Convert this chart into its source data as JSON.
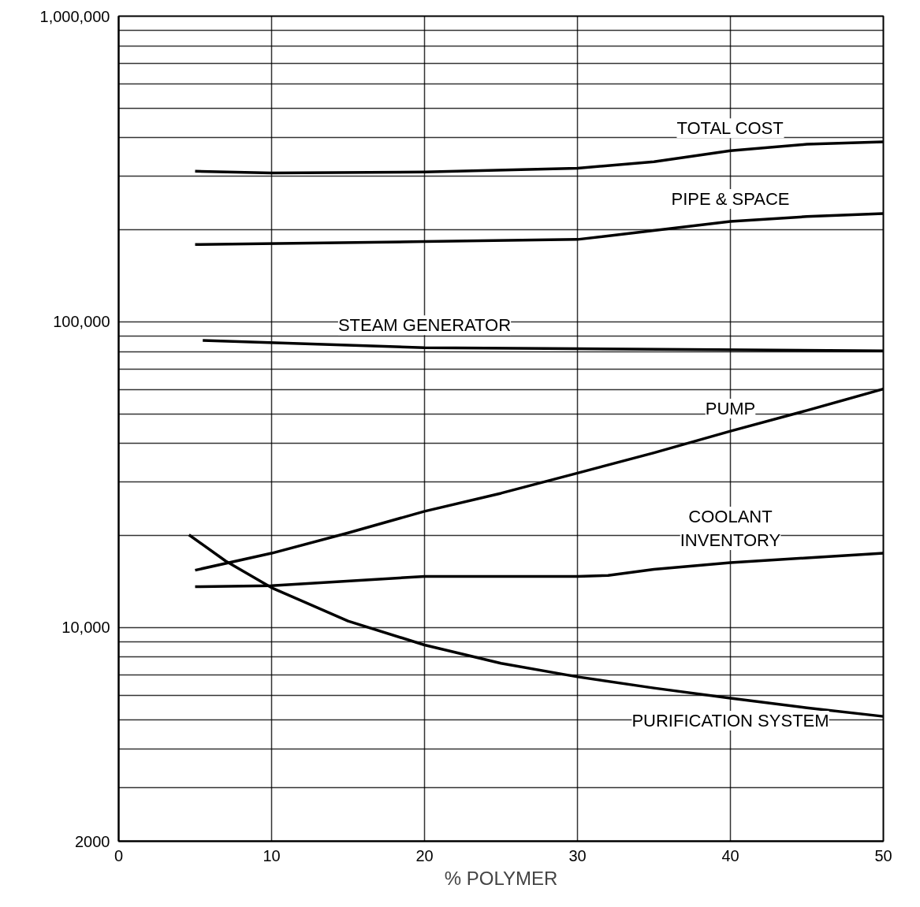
{
  "chart_data": {
    "type": "line",
    "xlabel": "% POLYMER",
    "log": "y",
    "grid": true,
    "marker": "none",
    "line_style": "solid",
    "xlim": [
      0,
      50
    ],
    "xticks": [
      0,
      10,
      20,
      30,
      40,
      50
    ],
    "ylim": [
      2000,
      1000000
    ],
    "yticks": [
      {
        "value": 2000,
        "label": "2000"
      },
      {
        "value": 3000,
        "label": null
      },
      {
        "value": 4000,
        "label": null
      },
      {
        "value": 5000,
        "label": null
      },
      {
        "value": 6000,
        "label": null
      },
      {
        "value": 7000,
        "label": null
      },
      {
        "value": 8000,
        "label": null
      },
      {
        "value": 9000,
        "label": null
      },
      {
        "value": 10000,
        "label": "10,000"
      },
      {
        "value": 20000,
        "label": null
      },
      {
        "value": 30000,
        "label": null
      },
      {
        "value": 40000,
        "label": null
      },
      {
        "value": 50000,
        "label": null
      },
      {
        "value": 60000,
        "label": null
      },
      {
        "value": 70000,
        "label": null
      },
      {
        "value": 80000,
        "label": null
      },
      {
        "value": 90000,
        "label": null
      },
      {
        "value": 100000,
        "label": "100,000"
      },
      {
        "value": 200000,
        "label": null
      },
      {
        "value": 300000,
        "label": null
      },
      {
        "value": 400000,
        "label": null
      },
      {
        "value": 500000,
        "label": null
      },
      {
        "value": 600000,
        "label": null
      },
      {
        "value": 700000,
        "label": null
      },
      {
        "value": 800000,
        "label": null
      },
      {
        "value": 900000,
        "label": null
      },
      {
        "value": 1000000,
        "label": "1,000,000"
      }
    ],
    "series": [
      {
        "name": "TOTAL COST",
        "color": "#000000",
        "x": [
          5,
          10,
          20,
          30,
          35,
          40,
          45,
          50
        ],
        "values": [
          311000,
          307000,
          309000,
          318000,
          334000,
          363000,
          381000,
          388000
        ]
      },
      {
        "name": "PIPE & SPACE",
        "color": "#000000",
        "x": [
          5,
          20,
          30,
          35,
          40,
          45,
          50
        ],
        "values": [
          179000,
          183000,
          186000,
          199000,
          213000,
          221000,
          226000
        ]
      },
      {
        "name": "STEAM GENERATOR",
        "color": "#000000",
        "x": [
          5.5,
          20,
          30,
          50
        ],
        "values": [
          86900,
          82300,
          81700,
          80400
        ]
      },
      {
        "name": "PUMP",
        "color": "#000000",
        "x": [
          5,
          10,
          15,
          20,
          25,
          30,
          35,
          40,
          45,
          50
        ],
        "values": [
          15400,
          17500,
          20400,
          24000,
          27500,
          32000,
          37300,
          43900,
          51300,
          60300
        ]
      },
      {
        "name": "COOLANT\nINVENTORY",
        "color": "#000000",
        "x": [
          5,
          10,
          20,
          30,
          32,
          35,
          40,
          45,
          50
        ],
        "values": [
          13600,
          13700,
          14700,
          14700,
          14800,
          15500,
          16300,
          16900,
          17500
        ]
      },
      {
        "name": "PURIFICATION SYSTEM",
        "color": "#000000",
        "x": [
          4.6,
          7,
          10,
          15,
          20,
          25,
          30,
          35,
          40,
          45,
          50
        ],
        "values": [
          20100,
          16500,
          13500,
          10500,
          8770,
          7640,
          6900,
          6340,
          5870,
          5460,
          5120
        ]
      }
    ]
  }
}
